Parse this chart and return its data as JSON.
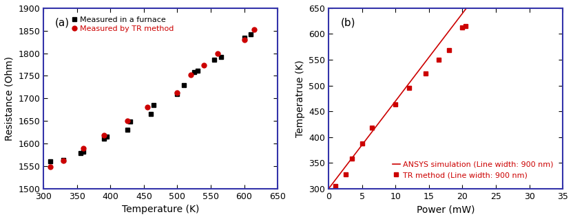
{
  "panel_a": {
    "label": "(a)",
    "furnace_x": [
      310,
      330,
      355,
      360,
      390,
      395,
      425,
      430,
      460,
      465,
      500,
      510,
      525,
      530,
      555,
      565,
      600,
      610
    ],
    "furnace_y": [
      1560,
      1563,
      1578,
      1582,
      1610,
      1615,
      1630,
      1648,
      1665,
      1685,
      1710,
      1730,
      1758,
      1762,
      1785,
      1792,
      1835,
      1842
    ],
    "tr_x": [
      310,
      330,
      360,
      390,
      425,
      455,
      500,
      520,
      540,
      560,
      600,
      615
    ],
    "tr_y": [
      1548,
      1562,
      1590,
      1618,
      1650,
      1680,
      1712,
      1752,
      1773,
      1800,
      1830,
      1852
    ],
    "furnace_color": "#000000",
    "tr_color": "#cc0000",
    "xlabel": "Temperature (K)",
    "ylabel": "Resistance (Ohm)",
    "xlim": [
      300,
      650
    ],
    "ylim": [
      1500,
      1900
    ],
    "xticks": [
      300,
      350,
      400,
      450,
      500,
      550,
      600,
      650
    ],
    "yticks": [
      1500,
      1550,
      1600,
      1650,
      1700,
      1750,
      1800,
      1850,
      1900
    ],
    "legend1": "Measured in a furnace",
    "legend2": "Measured by TR method"
  },
  "panel_b": {
    "label": "(b)",
    "tr_x": [
      1.0,
      2.5,
      3.5,
      5.0,
      6.5,
      10.0,
      12.0,
      14.5,
      16.5,
      18.0,
      20.0,
      20.5
    ],
    "tr_y": [
      305,
      328,
      358,
      387,
      418,
      463,
      495,
      524,
      550,
      568,
      612,
      615
    ],
    "tr_color": "#cc0000",
    "sim_color": "#cc0000",
    "sim_a": 93.0,
    "sim_b": 0.58,
    "xlabel": "Power (mW)",
    "ylabel": "Temperatrue (K)",
    "xlim": [
      0,
      35
    ],
    "ylim": [
      300,
      650
    ],
    "xticks": [
      0,
      5,
      10,
      15,
      20,
      25,
      30,
      35
    ],
    "yticks": [
      300,
      350,
      400,
      450,
      500,
      550,
      600,
      650
    ],
    "legend1": "TR method (Line width: 900 nm)",
    "legend2": "ANSYS simulation (Line width: 900 nm)"
  },
  "border_color": "#3333aa",
  "background_color": "#ffffff"
}
